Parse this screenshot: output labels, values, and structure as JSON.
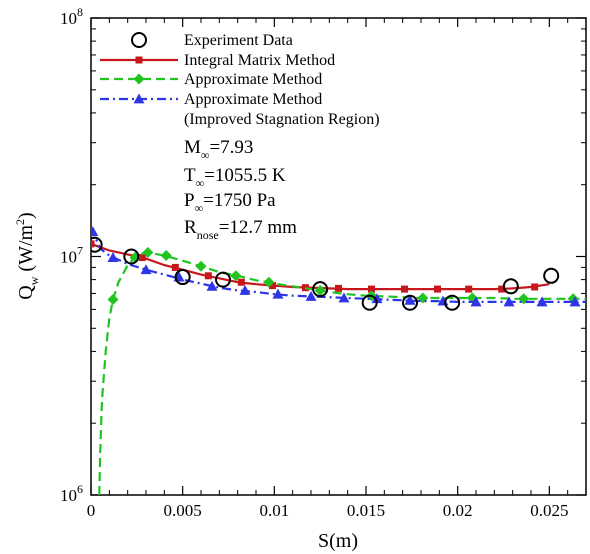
{
  "chart_data": {
    "type": "line",
    "xlabel": "S(m)",
    "ylabel": "Q_w (W/m^2)",
    "ylabel_parts": {
      "main": "Q",
      "sub": "w",
      "units_pre": " (W/m",
      "sup": "2",
      "units_post": ")"
    },
    "yscale": "log",
    "xlim": [
      0,
      0.027
    ],
    "ylim": [
      1000000,
      100000000
    ],
    "x_ticks": [
      {
        "value": 0,
        "label": "0"
      },
      {
        "value": 0.005,
        "label": "0.005"
      },
      {
        "value": 0.01,
        "label": "0.01"
      },
      {
        "value": 0.015,
        "label": "0.015"
      },
      {
        "value": 0.02,
        "label": "0.02"
      },
      {
        "value": 0.025,
        "label": "0.025"
      }
    ],
    "y_ticks": [
      {
        "value": 1000000,
        "base": "10",
        "exp": "6"
      },
      {
        "value": 10000000,
        "base": "10",
        "exp": "7"
      },
      {
        "value": 100000000,
        "base": "10",
        "exp": "8"
      }
    ],
    "grid": false,
    "legend_position": "top-right",
    "series": [
      {
        "name": "Experiment Data",
        "style": "markers",
        "marker": "circle",
        "color": "#000000",
        "points": [
          [
            0.0002,
            11200000
          ],
          [
            0.0022,
            10000000
          ],
          [
            0.005,
            8200000
          ],
          [
            0.0072,
            8000000
          ],
          [
            0.0125,
            7300000
          ],
          [
            0.0152,
            6400000
          ],
          [
            0.0174,
            6400000
          ],
          [
            0.0197,
            6400000
          ],
          [
            0.0229,
            7500000
          ],
          [
            0.0251,
            8300000
          ]
        ]
      },
      {
        "name": "Integral Matrix Method",
        "style": "solid",
        "marker": "square",
        "color": "#c8171c",
        "line": [
          [
            0,
            11300000
          ],
          [
            0.001,
            10600000
          ],
          [
            0.002,
            10200000
          ],
          [
            0.003,
            9800000
          ],
          [
            0.004,
            9200000
          ],
          [
            0.005,
            8800000
          ],
          [
            0.006,
            8400000
          ],
          [
            0.007,
            8100000
          ],
          [
            0.008,
            7800000
          ],
          [
            0.009,
            7650000
          ],
          [
            0.01,
            7550000
          ],
          [
            0.011,
            7450000
          ],
          [
            0.012,
            7400000
          ],
          [
            0.013,
            7350000
          ],
          [
            0.014,
            7300000
          ],
          [
            0.015,
            7300000
          ],
          [
            0.016,
            7300000
          ],
          [
            0.017,
            7300000
          ],
          [
            0.018,
            7300000
          ],
          [
            0.019,
            7300000
          ],
          [
            0.02,
            7300000
          ],
          [
            0.021,
            7300000
          ],
          [
            0.022,
            7300000
          ],
          [
            0.023,
            7350000
          ],
          [
            0.024,
            7450000
          ],
          [
            0.025,
            7650000
          ]
        ],
        "markers": [
          [
            0,
            11300000
          ],
          [
            0.0028,
            9900000
          ],
          [
            0.0046,
            9000000
          ],
          [
            0.0064,
            8300000
          ],
          [
            0.0082,
            7800000
          ],
          [
            0.0099,
            7550000
          ],
          [
            0.0117,
            7400000
          ],
          [
            0.0135,
            7350000
          ],
          [
            0.0153,
            7300000
          ],
          [
            0.0171,
            7300000
          ],
          [
            0.0189,
            7300000
          ],
          [
            0.0206,
            7300000
          ],
          [
            0.0224,
            7300000
          ],
          [
            0.0242,
            7450000
          ]
        ]
      },
      {
        "name": "Approximate Method",
        "style": "dashed",
        "marker": "diamond",
        "color": "#21c321",
        "line": [
          [
            0.00045,
            1000000
          ],
          [
            0.0005,
            1500000
          ],
          [
            0.0006,
            2500000
          ],
          [
            0.0008,
            4000000
          ],
          [
            0.001,
            5500000
          ],
          [
            0.0012,
            6600000
          ],
          [
            0.0015,
            7800000
          ],
          [
            0.002,
            9200000
          ],
          [
            0.0025,
            10100000
          ],
          [
            0.003,
            10400000
          ],
          [
            0.004,
            10100000
          ],
          [
            0.005,
            9600000
          ],
          [
            0.006,
            9100000
          ],
          [
            0.007,
            8600000
          ],
          [
            0.008,
            8300000
          ],
          [
            0.009,
            7950000
          ],
          [
            0.01,
            7700000
          ],
          [
            0.011,
            7500000
          ],
          [
            0.012,
            7300000
          ],
          [
            0.013,
            7100000
          ],
          [
            0.014,
            6950000
          ],
          [
            0.015,
            6850000
          ],
          [
            0.016,
            6800000
          ],
          [
            0.017,
            6750000
          ],
          [
            0.018,
            6700000
          ],
          [
            0.019,
            6700000
          ],
          [
            0.02,
            6700000
          ],
          [
            0.021,
            6700000
          ],
          [
            0.022,
            6700000
          ],
          [
            0.023,
            6650000
          ],
          [
            0.024,
            6650000
          ],
          [
            0.025,
            6650000
          ],
          [
            0.026,
            6650000
          ],
          [
            0.027,
            6650000
          ]
        ],
        "markers": [
          [
            0.0012,
            6600000
          ],
          [
            0.0024,
            9900000
          ],
          [
            0.0031,
            10400000
          ],
          [
            0.0041,
            10100000
          ],
          [
            0.006,
            9100000
          ],
          [
            0.0079,
            8300000
          ],
          [
            0.0097,
            7800000
          ],
          [
            0.0125,
            7200000
          ],
          [
            0.0153,
            6850000
          ],
          [
            0.0181,
            6700000
          ],
          [
            0.0208,
            6700000
          ],
          [
            0.0236,
            6650000
          ],
          [
            0.0263,
            6650000
          ]
        ]
      },
      {
        "name": "Approximate Method (Improved Stagnation Region)",
        "name_lines": [
          "Approximate Method",
          "(Improved Stagnation Region)"
        ],
        "style": "dashdot",
        "marker": "triangle",
        "color": "#2d35e6",
        "line": [
          [
            0,
            13200000
          ],
          [
            0.0005,
            10800000
          ],
          [
            0.001,
            10100000
          ],
          [
            0.002,
            9300000
          ],
          [
            0.003,
            8800000
          ],
          [
            0.004,
            8400000
          ],
          [
            0.005,
            8000000
          ],
          [
            0.006,
            7700000
          ],
          [
            0.007,
            7400000
          ],
          [
            0.008,
            7200000
          ],
          [
            0.009,
            7100000
          ],
          [
            0.01,
            6950000
          ],
          [
            0.011,
            6850000
          ],
          [
            0.012,
            6800000
          ],
          [
            0.013,
            6750000
          ],
          [
            0.014,
            6700000
          ],
          [
            0.015,
            6650000
          ],
          [
            0.016,
            6600000
          ],
          [
            0.017,
            6550000
          ],
          [
            0.018,
            6500000
          ],
          [
            0.019,
            6500000
          ],
          [
            0.02,
            6450000
          ],
          [
            0.021,
            6450000
          ],
          [
            0.022,
            6450000
          ],
          [
            0.023,
            6450000
          ],
          [
            0.024,
            6450000
          ],
          [
            0.025,
            6450000
          ],
          [
            0.026,
            6450000
          ],
          [
            0.027,
            6450000
          ]
        ],
        "markers": [
          [
            0.0001,
            12700000
          ],
          [
            0.0012,
            9900000
          ],
          [
            0.003,
            8800000
          ],
          [
            0.0048,
            8200000
          ],
          [
            0.0066,
            7500000
          ],
          [
            0.0084,
            7200000
          ],
          [
            0.0102,
            6950000
          ],
          [
            0.012,
            6800000
          ],
          [
            0.0138,
            6700000
          ],
          [
            0.0156,
            6650000
          ],
          [
            0.0174,
            6550000
          ],
          [
            0.0192,
            6500000
          ],
          [
            0.021,
            6450000
          ],
          [
            0.0228,
            6450000
          ],
          [
            0.0246,
            6450000
          ],
          [
            0.0264,
            6450000
          ]
        ]
      }
    ],
    "annotations": [
      {
        "main": "M",
        "sub": "∞",
        "rest": "=7.93"
      },
      {
        "main": "T",
        "sub": "∞",
        "rest": "=1055.5 K"
      },
      {
        "main": "P",
        "sub": "∞",
        "rest": "=1750 Pa"
      },
      {
        "main": "R",
        "sub": "nose",
        "rest": "=12.7 mm"
      }
    ]
  }
}
